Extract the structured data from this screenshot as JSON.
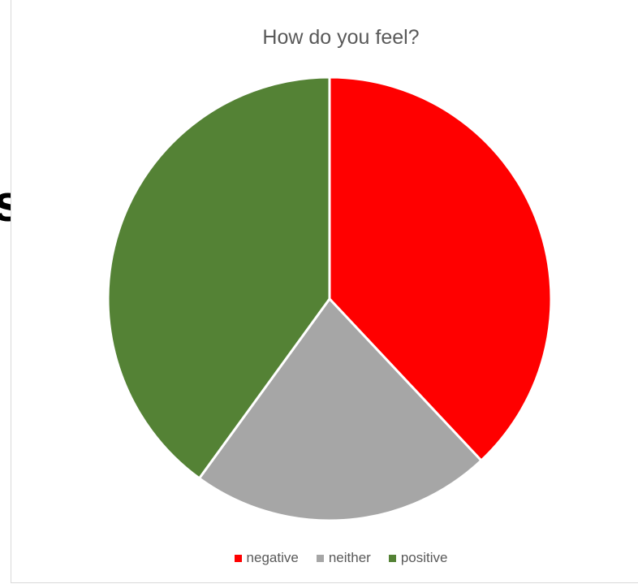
{
  "chart_data": {
    "type": "pie",
    "title": "How do you feel?",
    "categories": [
      "negative",
      "neither",
      "positive"
    ],
    "values": [
      38,
      22,
      40
    ],
    "colors": [
      "#ff0000",
      "#a6a6a6",
      "#548235"
    ],
    "start_angle_deg": 0,
    "direction": "clockwise",
    "legend_position": "bottom"
  },
  "background_text": "s"
}
